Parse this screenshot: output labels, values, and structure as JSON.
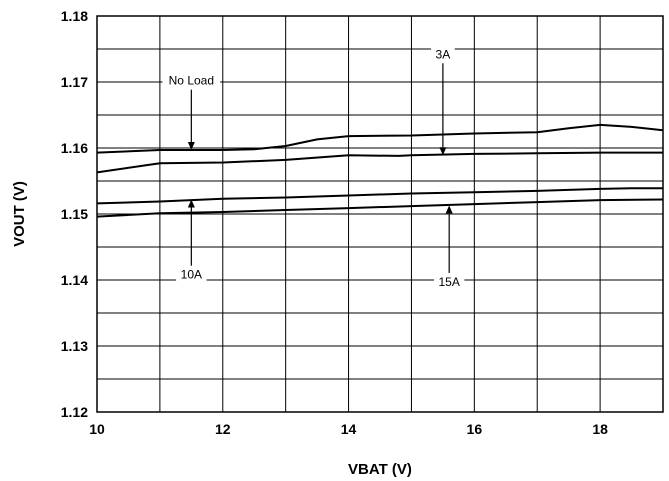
{
  "chart_data": {
    "type": "line",
    "title": "",
    "xlabel": "VBAT (V)",
    "ylabel": "VOUT (V)",
    "xlim": [
      10,
      19
    ],
    "ylim": [
      1.12,
      1.18
    ],
    "x_ticks": [
      10,
      12,
      14,
      16,
      18
    ],
    "y_ticks": [
      1.12,
      1.13,
      1.14,
      1.15,
      1.16,
      1.17,
      1.18
    ],
    "x_tick_labels": [
      "10",
      "12",
      "14",
      "16",
      "18"
    ],
    "y_tick_labels": [
      "1.12",
      "1.13",
      "1.14",
      "1.15",
      "1.16",
      "1.17",
      "1.18"
    ],
    "grid": true,
    "series": [
      {
        "name": "No Load",
        "x": [
          10,
          11,
          12,
          12.5,
          13,
          13.5,
          14,
          15,
          16,
          17,
          17.5,
          18,
          18.5,
          19
        ],
        "y": [
          1.1593,
          1.1597,
          1.1597,
          1.1598,
          1.1603,
          1.1613,
          1.1618,
          1.1619,
          1.1622,
          1.1624,
          1.163,
          1.1635,
          1.1632,
          1.1627
        ]
      },
      {
        "name": "3A",
        "x": [
          10,
          11,
          12,
          13,
          14,
          14.8,
          15,
          16,
          17,
          18,
          19
        ],
        "y": [
          1.1563,
          1.1577,
          1.1578,
          1.1582,
          1.1589,
          1.1588,
          1.1589,
          1.1591,
          1.1592,
          1.1593,
          1.1593
        ]
      },
      {
        "name": "10A",
        "x": [
          10,
          11,
          12,
          13,
          14,
          15,
          16,
          17,
          18,
          18.5,
          19
        ],
        "y": [
          1.1516,
          1.1519,
          1.1523,
          1.1525,
          1.1528,
          1.1531,
          1.1533,
          1.1535,
          1.1538,
          1.1539,
          1.1539
        ]
      },
      {
        "name": "15A",
        "x": [
          10,
          11,
          12,
          13,
          14,
          15,
          16,
          17,
          18,
          19
        ],
        "y": [
          1.1496,
          1.1501,
          1.1503,
          1.1506,
          1.1509,
          1.1512,
          1.1515,
          1.1518,
          1.1521,
          1.1522
        ]
      }
    ],
    "annotations": [
      {
        "text": "No Load",
        "x": 11.5,
        "y": 1.1702,
        "arrow_to": [
          11.5,
          1.1597
        ]
      },
      {
        "text": "3A",
        "x": 15.5,
        "y": 1.1742,
        "arrow_to": [
          15.5,
          1.1589
        ]
      },
      {
        "text": "10A",
        "x": 11.5,
        "y": 1.1408,
        "arrow_to": [
          11.5,
          1.1522
        ]
      },
      {
        "text": "15A",
        "x": 15.6,
        "y": 1.1397,
        "arrow_to": [
          15.6,
          1.1513
        ]
      }
    ]
  }
}
